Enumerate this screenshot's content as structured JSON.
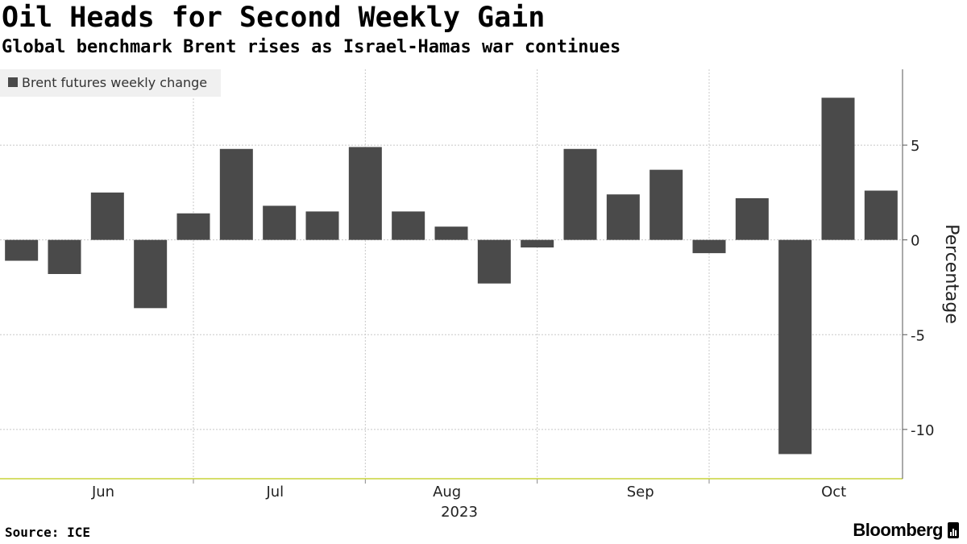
{
  "title": "Oil Heads for Second Weekly Gain",
  "subtitle": "Global benchmark Brent rises as Israel-Hamas war continues",
  "source": "Source: ICE",
  "brand": "Bloomberg",
  "colors": {
    "bar": "#4a4a4a",
    "legend_bg": "#f0f0f0",
    "axis": "#c8d43a",
    "grid": "#c8c8c8"
  },
  "chart_data": {
    "type": "bar",
    "title": "Oil Heads for Second Weekly Gain",
    "legend": [
      "Brent futures weekly change"
    ],
    "ylabel": "Percentage",
    "ylim": [
      -12.6,
      9
    ],
    "yticks": [
      5,
      0,
      -5,
      -10
    ],
    "month_labels": [
      "Jun",
      "Jul",
      "Aug",
      "Sep",
      "Oct"
    ],
    "year_label": "2023",
    "series": [
      {
        "name": "Brent futures weekly change",
        "values": [
          -1.1,
          -1.8,
          2.5,
          -3.6,
          1.4,
          4.8,
          1.8,
          1.5,
          4.9,
          1.5,
          0.7,
          -2.3,
          -0.4,
          4.8,
          2.4,
          3.7,
          -0.7,
          2.2,
          -11.3,
          7.5,
          2.6
        ]
      }
    ]
  }
}
